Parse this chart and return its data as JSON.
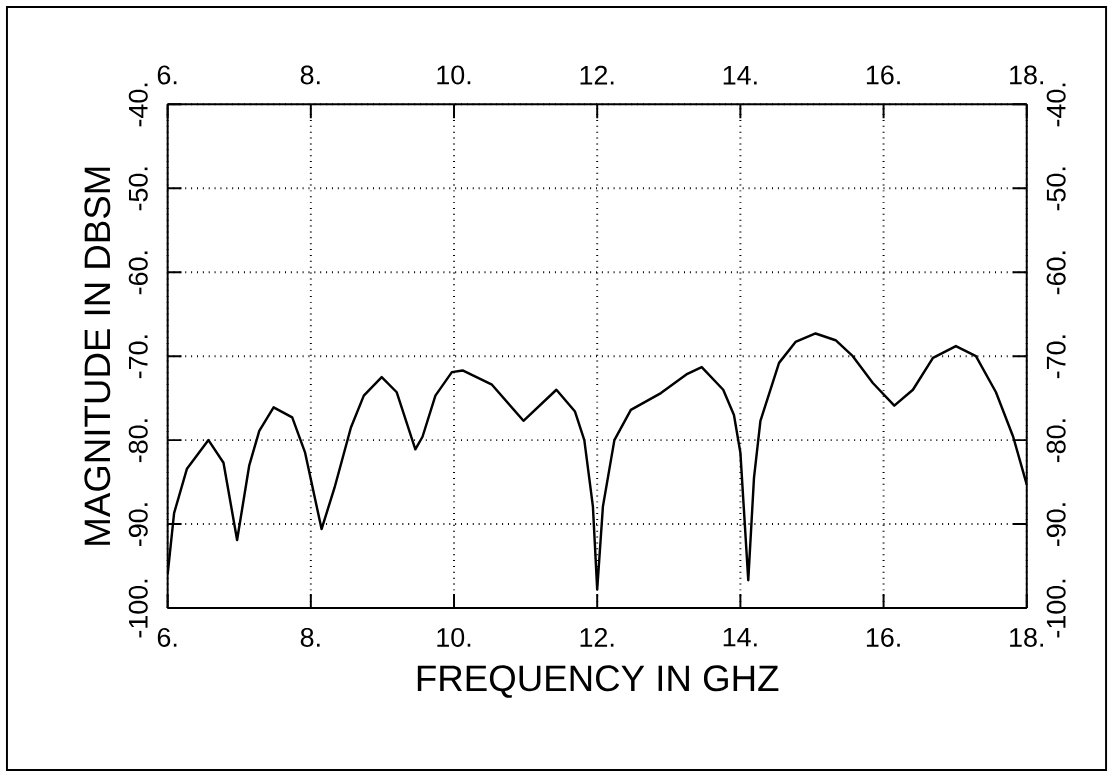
{
  "chart_data": {
    "type": "line",
    "xlabel": "FREQUENCY IN GHZ",
    "ylabel": "MAGNITUDE IN DBSM",
    "x": [
      6.0,
      6.09,
      6.27,
      6.57,
      6.78,
      6.97,
      7.14,
      7.28,
      7.48,
      7.74,
      7.92,
      8.15,
      8.33,
      8.56,
      8.74,
      8.99,
      9.2,
      9.46,
      9.56,
      9.74,
      9.97,
      10.12,
      10.53,
      10.97,
      11.43,
      11.69,
      11.82,
      11.94,
      12.0,
      12.08,
      12.24,
      12.47,
      12.89,
      13.26,
      13.46,
      13.76,
      13.91,
      14.0,
      14.11,
      14.19,
      14.28,
      14.54,
      14.77,
      15.05,
      15.33,
      15.57,
      15.85,
      16.15,
      16.41,
      16.69,
      17.01,
      17.29,
      17.57,
      17.81,
      18.0
    ],
    "series": [
      {
        "color": "#000000",
        "values": [
          -96,
          -88.7,
          -83.4,
          -80,
          -82.7,
          -91.9,
          -83,
          -78.9,
          -76.1,
          -77.3,
          -81.5,
          -90.6,
          -85.7,
          -78.5,
          -74.7,
          -72.5,
          -74.3,
          -81.1,
          -79.6,
          -74.7,
          -71.9,
          -71.7,
          -73.4,
          -77.7,
          -74.0,
          -76.6,
          -80,
          -87.9,
          -97.8,
          -87.9,
          -80,
          -76.4,
          -74.4,
          -72.1,
          -71.3,
          -74,
          -77,
          -81.5,
          -96.7,
          -84.5,
          -77.7,
          -70.8,
          -68.3,
          -67.3,
          -68.1,
          -70,
          -73.2,
          -75.9,
          -74,
          -70.2,
          -68.8,
          -70,
          -74.3,
          -79.6,
          -85.3
        ]
      }
    ],
    "xlim": [
      6,
      18
    ],
    "ylim": [
      -100,
      -40
    ],
    "x2lim": [
      6,
      18
    ],
    "y2lim": [
      -100,
      -40
    ],
    "xticks": [
      {
        "value": 6,
        "label": "6."
      },
      {
        "value": 8,
        "label": "8."
      },
      {
        "value": 10,
        "label": "10."
      },
      {
        "value": 12,
        "label": "12."
      },
      {
        "value": 14,
        "label": "14."
      },
      {
        "value": 16,
        "label": "16."
      },
      {
        "value": 18,
        "label": "18."
      }
    ],
    "x2ticks": [
      {
        "value": 6,
        "label": "6."
      },
      {
        "value": 8,
        "label": "8."
      },
      {
        "value": 10,
        "label": "10."
      },
      {
        "value": 12,
        "label": "12."
      },
      {
        "value": 14,
        "label": "14."
      },
      {
        "value": 16,
        "label": "16."
      },
      {
        "value": 18,
        "label": "18."
      }
    ],
    "yticks": [
      {
        "value": -100,
        "label": "-100."
      },
      {
        "value": -90,
        "label": "-90."
      },
      {
        "value": -80,
        "label": "-80."
      },
      {
        "value": -70,
        "label": "-70."
      },
      {
        "value": -60,
        "label": "-60."
      },
      {
        "value": -50,
        "label": "-50."
      },
      {
        "value": -40,
        "label": "-40."
      }
    ],
    "y2ticks": [
      {
        "value": -100,
        "label": "-100."
      },
      {
        "value": -90,
        "label": "-90."
      },
      {
        "value": -80,
        "label": "-80."
      },
      {
        "value": -70,
        "label": "-70."
      },
      {
        "value": -60,
        "label": "-60."
      },
      {
        "value": -50,
        "label": "-50."
      },
      {
        "value": -40,
        "label": "-40."
      }
    ],
    "grid": true,
    "marker": "none",
    "line_style": "solid"
  }
}
